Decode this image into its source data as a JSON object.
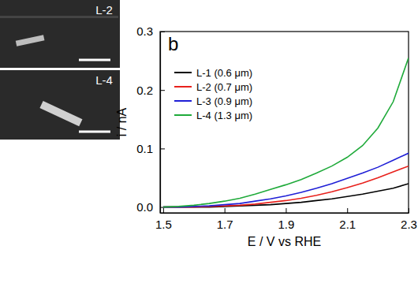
{
  "images": [
    {
      "label": "L-2"
    },
    {
      "label": "L-4"
    }
  ],
  "chart_data": {
    "type": "line",
    "annotations": [
      "b"
    ],
    "x_label": "E / V vs RHE",
    "y_label": "i / nA",
    "x": [
      1.5,
      1.55,
      1.6,
      1.65,
      1.7,
      1.75,
      1.8,
      1.85,
      1.9,
      1.95,
      2.0,
      2.05,
      2.1,
      2.15,
      2.2,
      2.25,
      2.3
    ],
    "series": [
      {
        "name": "L-1 (0.6 μm)",
        "color": "#000000",
        "values": [
          0,
          0,
          0,
          0,
          0.001,
          0.002,
          0.003,
          0.004,
          0.006,
          0.008,
          0.011,
          0.014,
          0.018,
          0.022,
          0.027,
          0.032,
          0.04
        ]
      },
      {
        "name": "L-2 (0.7 μm)",
        "color": "#e8211c",
        "values": [
          0,
          0,
          0,
          0.001,
          0.002,
          0.003,
          0.005,
          0.008,
          0.011,
          0.015,
          0.02,
          0.026,
          0.033,
          0.041,
          0.05,
          0.06,
          0.07
        ]
      },
      {
        "name": "L-3 (0.9 μm)",
        "color": "#1f1fd6",
        "values": [
          0,
          0,
          0.001,
          0.002,
          0.004,
          0.006,
          0.01,
          0.014,
          0.019,
          0.025,
          0.032,
          0.04,
          0.049,
          0.058,
          0.068,
          0.08,
          0.092
        ]
      },
      {
        "name": "L-4 (1.3 μm)",
        "color": "#1faa3a",
        "values": [
          0,
          0.001,
          0.003,
          0.006,
          0.01,
          0.015,
          0.022,
          0.03,
          0.038,
          0.047,
          0.058,
          0.07,
          0.085,
          0.105,
          0.135,
          0.18,
          0.255
        ]
      }
    ],
    "xlim": [
      1.49,
      2.3
    ],
    "ylim": [
      -0.01,
      0.3
    ],
    "xticks": [
      1.5,
      1.7,
      1.9,
      2.1,
      2.3
    ],
    "yticks": [
      {
        "value": 0,
        "label": "0.0"
      },
      0.1,
      0.2,
      0.3
    ],
    "legend": "upper left",
    "grid": false
  }
}
